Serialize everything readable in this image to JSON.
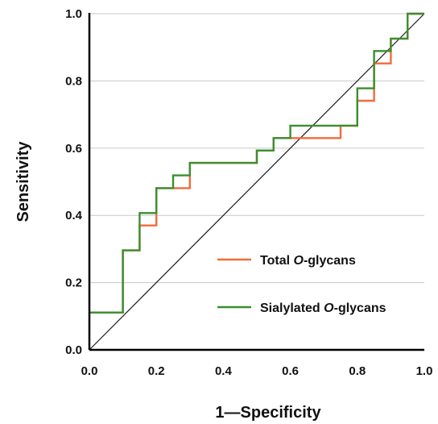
{
  "chart_data": {
    "type": "line",
    "title": "",
    "xlabel": "1—Specificity",
    "ylabel": "Sensitivity",
    "xlim": [
      0,
      1
    ],
    "ylim": [
      0,
      1
    ],
    "xticks": [
      "0.0",
      "0.2",
      "0.4",
      "0.6",
      "0.8",
      "1.0"
    ],
    "yticks": [
      "0.0",
      "0.2",
      "0.4",
      "0.6",
      "0.8",
      "1.0"
    ],
    "grid": "horizontal",
    "legend_position": "lower-right",
    "reference_line": {
      "x": [
        0,
        1
      ],
      "y": [
        0,
        1
      ],
      "color": "#1a1a1a"
    },
    "series": [
      {
        "name": "Total ",
        "name_italic": "O",
        "name_suffix": "-glycans",
        "color": "#f26b3a",
        "x": [
          0,
          0.1,
          0.1,
          0.15,
          0.15,
          0.2,
          0.2,
          0.25,
          0.25,
          0.3,
          0.3,
          0.5,
          0.5,
          0.55,
          0.55,
          0.6,
          0.6,
          0.75,
          0.75,
          0.8,
          0.8,
          0.85,
          0.85,
          0.9,
          0.9,
          0.95,
          0.95,
          1.0
        ],
        "y": [
          0.111,
          0.111,
          0.296,
          0.296,
          0.37,
          0.37,
          0.481,
          0.481,
          0.481,
          0.481,
          0.556,
          0.556,
          0.593,
          0.593,
          0.63,
          0.63,
          0.63,
          0.63,
          0.667,
          0.667,
          0.741,
          0.741,
          0.852,
          0.852,
          0.926,
          0.926,
          1.0,
          1.0
        ]
      },
      {
        "name": "Sialylated ",
        "name_italic": "O",
        "name_suffix": "-glycans",
        "color": "#3a8f2e",
        "x": [
          0,
          0.1,
          0.1,
          0.15,
          0.15,
          0.2,
          0.2,
          0.25,
          0.25,
          0.3,
          0.3,
          0.5,
          0.5,
          0.55,
          0.55,
          0.6,
          0.6,
          0.8,
          0.8,
          0.85,
          0.85,
          0.9,
          0.9,
          0.95,
          0.95,
          1.0
        ],
        "y": [
          0.111,
          0.111,
          0.296,
          0.296,
          0.407,
          0.407,
          0.481,
          0.481,
          0.519,
          0.519,
          0.556,
          0.556,
          0.593,
          0.593,
          0.63,
          0.63,
          0.667,
          0.667,
          0.778,
          0.778,
          0.889,
          0.889,
          0.926,
          0.926,
          1.0,
          1.0
        ]
      }
    ]
  }
}
